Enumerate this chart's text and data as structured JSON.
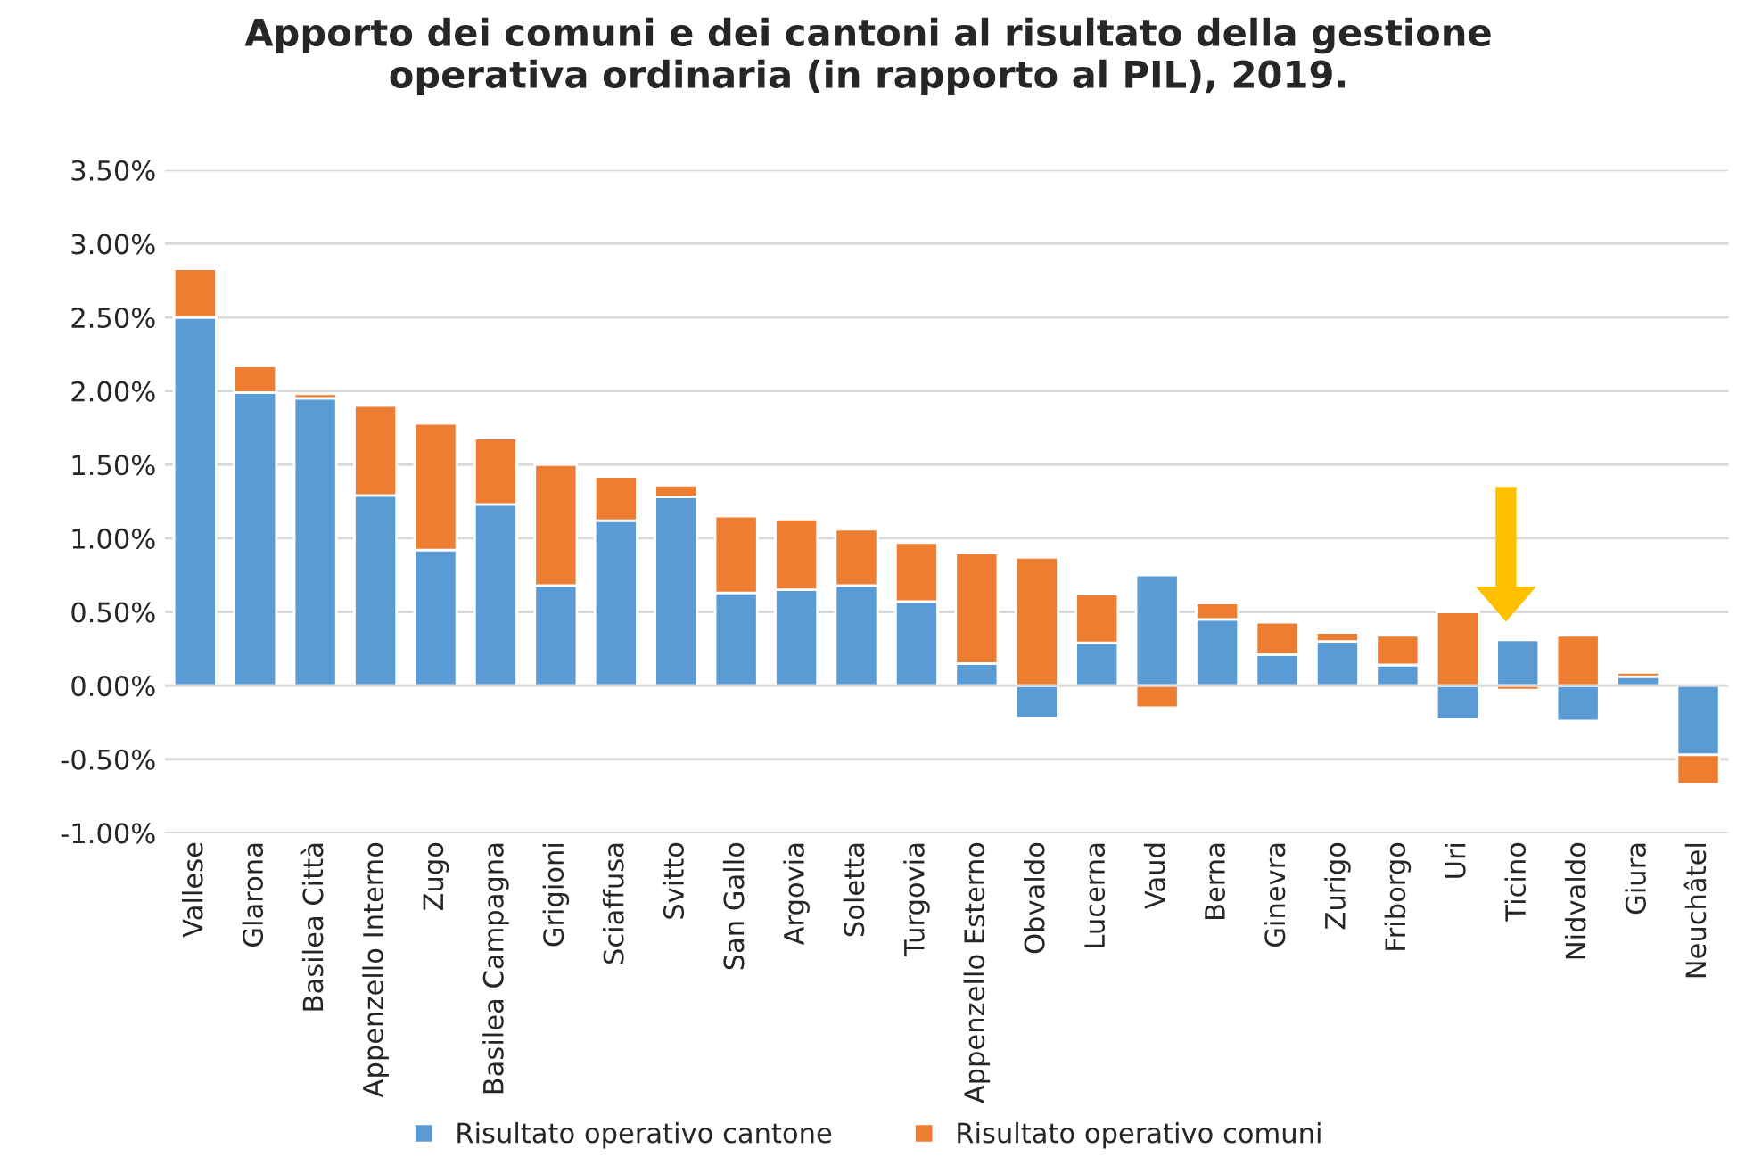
{
  "chart_data": {
    "type": "bar",
    "title": "Apporto dei comuni e dei cantoni al risultato della gestione\noperativa ordinaria (in rapporto al PIL), 2019.",
    "categories": [
      "Vallese",
      "Glarona",
      "Basilea Città",
      "Appenzello Interno",
      "Zugo",
      "Basilea Campagna",
      "Grigioni",
      "Sciaffusa",
      "Svitto",
      "San Gallo",
      "Argovia",
      "Soletta",
      "Turgovia",
      "Appenzello Esterno",
      "Obvaldo",
      "Lucerna",
      "Vaud",
      "Berna",
      "Ginevra",
      "Zurigo",
      "Friborgo",
      "Uri",
      "Ticino",
      "Nidvaldo",
      "Giura",
      "Neuchâtel"
    ],
    "series": [
      {
        "name": "Risultato operativo cantone",
        "color": "#5b9bd5",
        "values": [
          2.5,
          1.99,
          1.95,
          1.29,
          0.92,
          1.23,
          0.68,
          1.12,
          1.28,
          0.63,
          0.65,
          0.68,
          0.57,
          0.15,
          -0.22,
          0.29,
          0.75,
          0.45,
          0.21,
          0.3,
          0.14,
          -0.23,
          0.31,
          -0.24,
          0.06,
          -0.47
        ]
      },
      {
        "name": "Risultato operativo comuni",
        "color": "#ed7d31",
        "values": [
          0.33,
          0.18,
          0.03,
          0.61,
          0.86,
          0.45,
          0.82,
          0.3,
          0.08,
          0.52,
          0.48,
          0.38,
          0.4,
          0.75,
          0.87,
          0.33,
          -0.15,
          0.11,
          0.22,
          0.06,
          0.2,
          0.5,
          -0.03,
          0.34,
          0.03,
          -0.2
        ]
      }
    ],
    "stacked": true,
    "ylim": [
      -1.0,
      3.5
    ],
    "yticks": [
      {
        "value": -1.0,
        "label": "-1.00%"
      },
      {
        "value": -0.5,
        "label": "-0.50%"
      },
      {
        "value": 0.0,
        "label": "0.00%"
      },
      {
        "value": 0.5,
        "label": "0.50%"
      },
      {
        "value": 1.0,
        "label": "1.00%"
      },
      {
        "value": 1.5,
        "label": "1.50%"
      },
      {
        "value": 2.0,
        "label": "2.00%"
      },
      {
        "value": 2.5,
        "label": "2.50%"
      },
      {
        "value": 3.0,
        "label": "3.00%"
      },
      {
        "value": 3.5,
        "label": "3.50%"
      }
    ],
    "grid": "y",
    "legend": "bottom"
  }
}
